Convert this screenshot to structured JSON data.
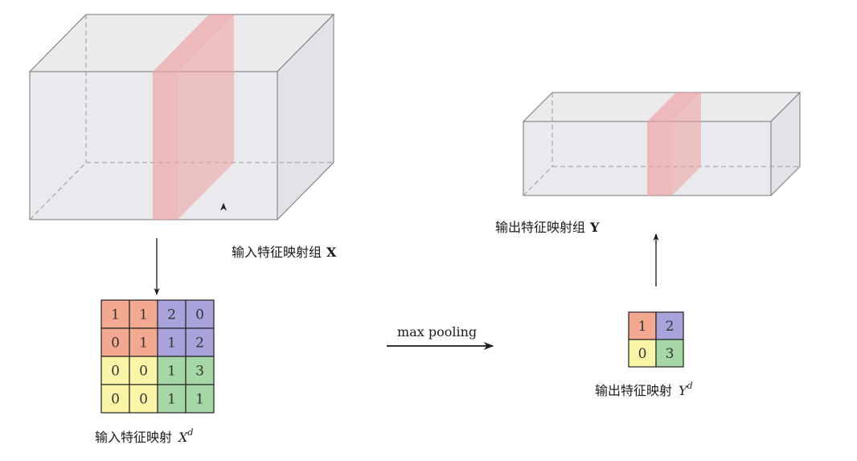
{
  "labels": {
    "input_group": "输入特征映射组",
    "input_group_symbol": "X",
    "output_group": "输出特征映射组",
    "output_group_symbol": "Y",
    "input_map": "输入特征映射",
    "input_map_symbol": "X",
    "input_map_superscript": "d",
    "output_map": "输出特征映射",
    "output_map_symbol": "Y",
    "output_map_superscript": "d",
    "operation": "max pooling"
  },
  "input_matrix": [
    [
      1,
      1,
      2,
      0
    ],
    [
      0,
      1,
      1,
      2
    ],
    [
      0,
      0,
      1,
      3
    ],
    [
      0,
      0,
      1,
      1
    ]
  ],
  "output_matrix": [
    [
      1,
      2
    ],
    [
      0,
      3
    ]
  ],
  "colors": {
    "quadrant_top_left": "#f3a98f",
    "quadrant_top_right": "#a9a3dc",
    "quadrant_bottom_left": "#fbf5a8",
    "quadrant_bottom_right": "#a6d8a7",
    "slice": "#ef9e9e",
    "box_fill": "#e9eaee",
    "box_edge": "#777777"
  }
}
